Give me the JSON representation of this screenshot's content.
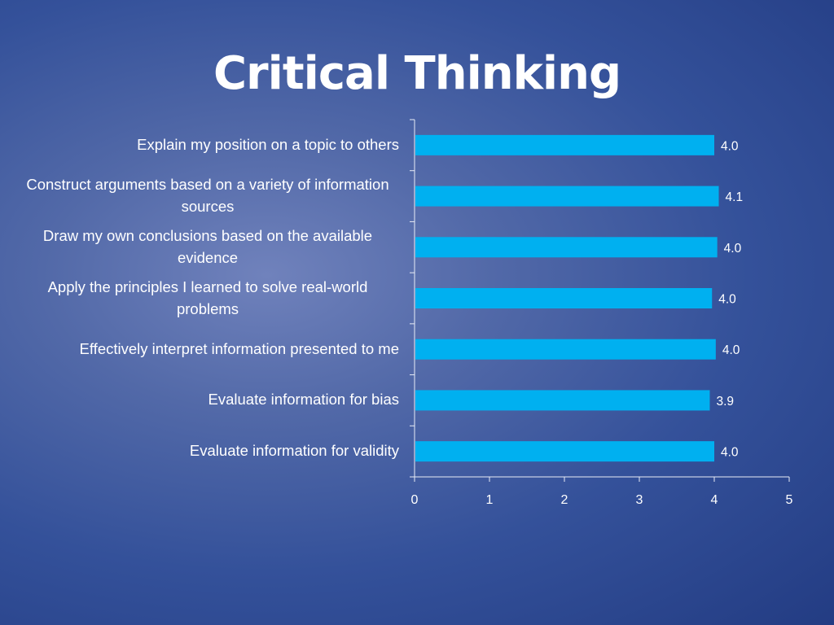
{
  "slide": {
    "title": "Critical Thinking"
  },
  "chart_data": {
    "type": "bar",
    "orientation": "horizontal",
    "categories": [
      "Explain my position on a topic to others",
      "Construct arguments based on a variety of information sources",
      "Draw my own conclusions based on the available evidence",
      "Apply the principles I learned to solve real-world problems",
      "Effectively interpret information presented to me",
      "Evaluate information for bias",
      "Evaluate information for validity"
    ],
    "values": [
      4.0,
      4.06,
      4.04,
      3.97,
      4.02,
      3.94,
      4.0
    ],
    "data_labels": [
      "4.0",
      "4.1",
      "4.0",
      "4.0",
      "4.0",
      "3.9",
      "4.0"
    ],
    "xlim": [
      0,
      5
    ],
    "xticks": [
      "0",
      "1",
      "2",
      "3",
      "4",
      "5"
    ],
    "grid": false,
    "legend": "none",
    "bar_color": "#00b0f0",
    "text_color": "#ffffff"
  }
}
